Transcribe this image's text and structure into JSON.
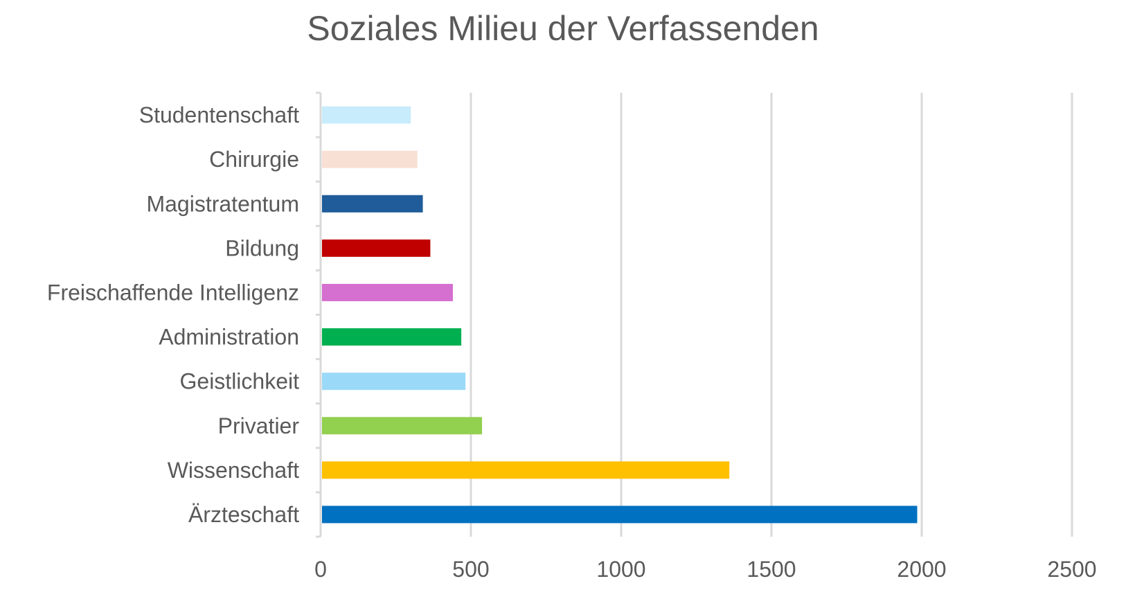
{
  "chart_data": {
    "type": "bar",
    "orientation": "horizontal",
    "title": "Soziales Milieu der Verfassenden",
    "xlabel": "",
    "ylabel": "",
    "categories": [
      "Ärzteschaft",
      "Wissenschaft",
      "Privatier",
      "Geistlichkeit",
      "Administration",
      "Freischaffende Intelligenz",
      "Bildung",
      "Magistratentum",
      "Chirurgie",
      "Studentenschaft"
    ],
    "values": [
      1985,
      1360,
      537,
      482,
      468,
      440,
      365,
      340,
      322,
      300
    ],
    "colors": [
      "#0070c0",
      "#ffc000",
      "#92d050",
      "#9bd9f8",
      "#00b050",
      "#d56fd0",
      "#c00000",
      "#1f5c99",
      "#f8e0d4",
      "#c8ecfb"
    ],
    "xlim": [
      0,
      2500
    ],
    "xticks": [
      "0",
      "500",
      "1000",
      "1500",
      "2000",
      "2500"
    ],
    "grid": true,
    "legend": "none"
  }
}
